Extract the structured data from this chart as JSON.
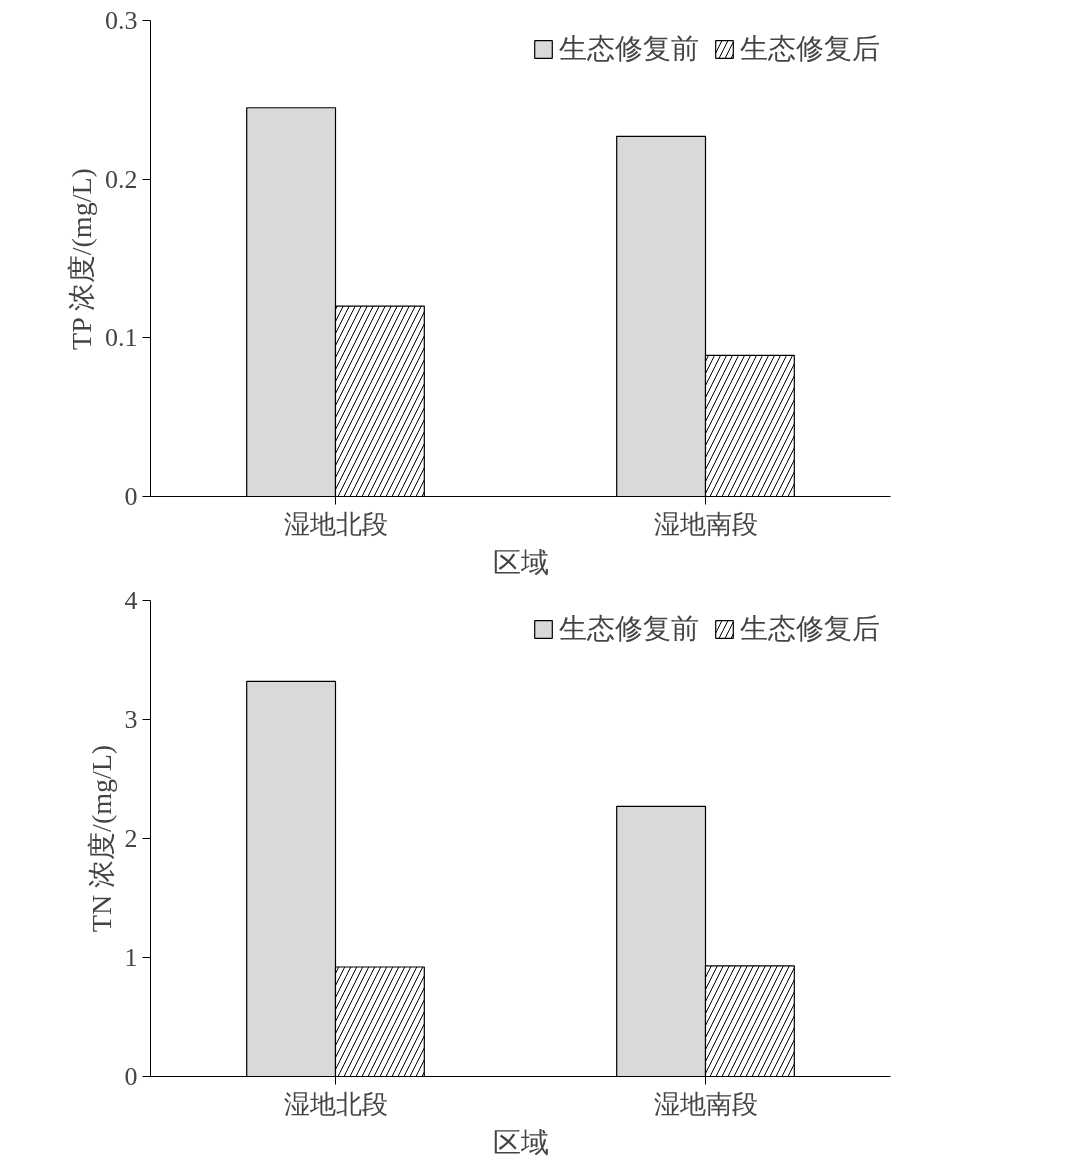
{
  "chart_data": [
    {
      "type": "bar",
      "xlabel": "区域",
      "ylabel": "TP 浓度/(mg/L)",
      "categories": [
        "湿地北段",
        "湿地南段"
      ],
      "series": [
        {
          "name": "生态修复前",
          "color": "#d9d9d9",
          "values": [
            0.245,
            0.227
          ]
        },
        {
          "name": "生态修复后",
          "color": "#ffffff",
          "values": [
            0.12,
            0.089
          ]
        }
      ],
      "ylim": [
        0,
        0.3
      ],
      "yticks": [
        0,
        0.1,
        0.2,
        0.3
      ],
      "grid": false,
      "legend": "top right"
    },
    {
      "type": "bar",
      "xlabel": "区域",
      "ylabel": "TN 浓度/(mg/L)",
      "categories": [
        "湿地北段",
        "湿地南段"
      ],
      "series": [
        {
          "name": "生态修复前",
          "color": "#d9d9d9",
          "values": [
            3.32,
            2.27
          ]
        },
        {
          "name": "生态修复后",
          "color": "#ffffff",
          "values": [
            0.92,
            0.93
          ]
        }
      ],
      "ylim": [
        0,
        4
      ],
      "yticks": [
        0,
        1,
        2,
        3,
        4
      ],
      "grid": false,
      "legend": "top right"
    }
  ]
}
